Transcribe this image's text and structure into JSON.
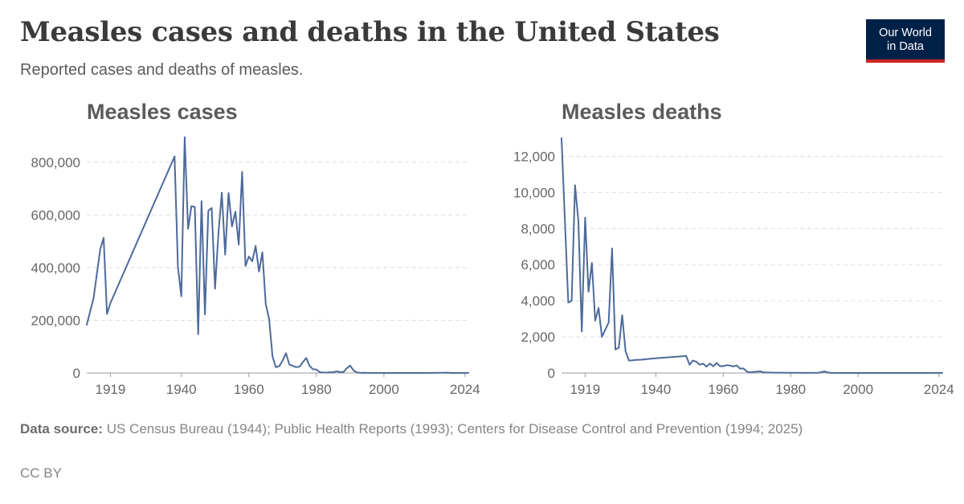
{
  "header": {
    "title": "Measles cases and deaths in the United States",
    "subtitle": "Reported cases and deaths of measles."
  },
  "logo": {
    "line1": "Our World",
    "line2": "in Data",
    "bg_color": "#002147",
    "accent_color": "#ce261e"
  },
  "series_color": "#4c6a9c",
  "chart_data": [
    {
      "type": "line",
      "title": "Measles cases",
      "ylim": [
        0,
        900000
      ],
      "xlim": [
        1912,
        2025
      ],
      "y_ticks": [
        0,
        200000,
        400000,
        600000,
        800000
      ],
      "y_tick_labels": [
        "0",
        "200,000",
        "400,000",
        "600,000",
        "800,000"
      ],
      "x_ticks": [
        1919,
        1940,
        1960,
        1980,
        2000,
        2024
      ],
      "x_tick_labels": [
        "1919",
        "1940",
        "1960",
        "1980",
        "2000",
        "2024"
      ],
      "grid": "horizontal-dashed",
      "series": [
        {
          "x": [
            1912,
            1914,
            1916,
            1917,
            1918,
            1919,
            1938,
            1939,
            1940,
            1941,
            1942,
            1943,
            1944,
            1945,
            1946,
            1947,
            1948,
            1949,
            1950,
            1951,
            1952,
            1953,
            1954,
            1955,
            1956,
            1957,
            1958,
            1959,
            1960,
            1961,
            1962,
            1963,
            1964,
            1965,
            1966,
            1967,
            1968,
            1969,
            1970,
            1971,
            1972,
            1973,
            1974,
            1975,
            1976,
            1977,
            1978,
            1979,
            1980,
            1981,
            1982,
            1983,
            1984,
            1985,
            1986,
            1987,
            1988,
            1989,
            1990,
            1991,
            1992,
            1993,
            1994,
            1995,
            2000,
            2005,
            2010,
            2015,
            2019,
            2020,
            2025
          ],
          "y": [
            183000,
            283000,
            470000,
            513000,
            224000,
            265000,
            822000,
            402000,
            291000,
            895000,
            547000,
            633000,
            630000,
            147000,
            652000,
            222000,
            616000,
            626000,
            320000,
            530000,
            684000,
            449000,
            683000,
            556000,
            612000,
            487000,
            763000,
            406000,
            442000,
            424000,
            482000,
            385000,
            458000,
            262000,
            205000,
            63000,
            22000,
            26000,
            47000,
            75000,
            32000,
            27000,
            22000,
            24000,
            41000,
            57000,
            27000,
            14000,
            13500,
            3100,
            1700,
            1500,
            2600,
            2800,
            6300,
            3700,
            3400,
            18000,
            28000,
            9600,
            2200,
            300,
            960,
            300,
            90,
            70,
            60,
            190,
            1280,
            13,
            300
          ]
        }
      ]
    },
    {
      "type": "line",
      "title": "Measles deaths",
      "ylim": [
        0,
        13000
      ],
      "xlim": [
        1912,
        2025
      ],
      "y_ticks": [
        0,
        2000,
        4000,
        6000,
        8000,
        10000,
        12000
      ],
      "y_tick_labels": [
        "0",
        "2,000",
        "4,000",
        "6,000",
        "8,000",
        "10,000",
        "12,000"
      ],
      "x_ticks": [
        1919,
        1940,
        1960,
        1980,
        2000,
        2024
      ],
      "x_tick_labels": [
        "1919",
        "1940",
        "1960",
        "1980",
        "2000",
        "2024"
      ],
      "grid": "horizontal-dashed",
      "series": [
        {
          "x": [
            1912,
            1914,
            1915,
            1916,
            1917,
            1918,
            1919,
            1920,
            1921,
            1922,
            1923,
            1924,
            1926,
            1927,
            1928,
            1929,
            1930,
            1931,
            1932,
            1933,
            1934,
            1935,
            1936,
            1937,
            1938,
            1939,
            1949,
            1950,
            1951,
            1952,
            1953,
            1954,
            1955,
            1956,
            1957,
            1958,
            1959,
            1960,
            1961,
            1962,
            1963,
            1964,
            1965,
            1966,
            1967,
            1968,
            1970,
            1971,
            1972,
            1975,
            1980,
            1985,
            1988,
            1989,
            1990,
            1991,
            1992,
            1995,
            2000,
            2010,
            2019,
            2025
          ],
          "y": [
            13000,
            3900,
            4000,
            10400,
            8400,
            2300,
            8600,
            4500,
            6100,
            2900,
            3600,
            2000,
            2800,
            6900,
            1300,
            1400,
            3200,
            1200,
            690,
            700,
            720,
            730,
            740,
            760,
            780,
            800,
            940,
            460,
            690,
            620,
            460,
            520,
            350,
            520,
            370,
            550,
            380,
            380,
            430,
            410,
            360,
            420,
            240,
            250,
            80,
            30,
            80,
            90,
            30,
            20,
            10,
            5,
            10,
            40,
            90,
            30,
            5,
            2,
            1,
            2,
            1,
            3
          ]
        }
      ]
    }
  ],
  "footer": {
    "source_label": "Data source:",
    "source_text": "US Census Bureau (1944); Public Health Reports (1993); Centers for Disease Control and Prevention (1994; 2025)",
    "license": "CC BY"
  }
}
